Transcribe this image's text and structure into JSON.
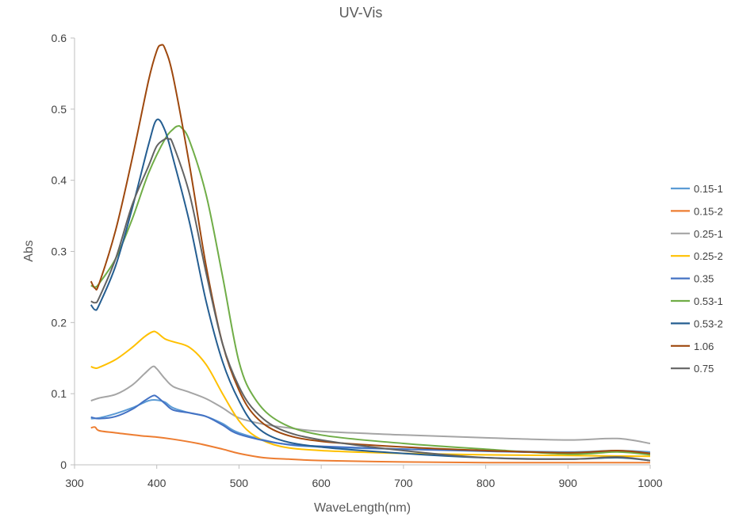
{
  "chart_data": {
    "type": "line",
    "title": "UV-Vis",
    "xlabel": "WaveLength(nm)",
    "ylabel": "Abs",
    "xlim": [
      300,
      1000
    ],
    "ylim": [
      0,
      0.6
    ],
    "xticks": [
      "300",
      "400",
      "500",
      "600",
      "700",
      "800",
      "900",
      "1000"
    ],
    "yticks": [
      "0",
      "0.1",
      "0.2",
      "0.3",
      "0.4",
      "0.5",
      "0.6"
    ],
    "grid": false,
    "legend_position": "right",
    "series": [
      {
        "name": "0.15-1",
        "color": "#5B9BD5",
        "x": [
          320,
          330,
          350,
          370,
          390,
          400,
          410,
          420,
          440,
          460,
          480,
          500,
          550,
          600,
          700,
          800,
          900,
          960,
          1000
        ],
        "y": [
          0.065,
          0.066,
          0.072,
          0.08,
          0.09,
          0.091,
          0.088,
          0.08,
          0.073,
          0.068,
          0.058,
          0.045,
          0.03,
          0.025,
          0.022,
          0.02,
          0.018,
          0.02,
          0.018
        ]
      },
      {
        "name": "0.15-2",
        "color": "#ED7D31",
        "x": [
          320,
          325,
          330,
          350,
          380,
          400,
          420,
          450,
          480,
          500,
          530,
          560,
          600,
          700,
          800,
          900,
          1000
        ],
        "y": [
          0.052,
          0.053,
          0.048,
          0.045,
          0.041,
          0.039,
          0.036,
          0.03,
          0.022,
          0.016,
          0.01,
          0.008,
          0.006,
          0.004,
          0.003,
          0.003,
          0.003
        ]
      },
      {
        "name": "0.25-1",
        "color": "#A5A5A5",
        "x": [
          320,
          330,
          350,
          370,
          385,
          395,
          400,
          410,
          420,
          440,
          460,
          480,
          500,
          530,
          560,
          600,
          700,
          800,
          900,
          960,
          1000
        ],
        "y": [
          0.09,
          0.094,
          0.099,
          0.112,
          0.128,
          0.138,
          0.135,
          0.121,
          0.11,
          0.102,
          0.093,
          0.08,
          0.066,
          0.057,
          0.052,
          0.047,
          0.042,
          0.038,
          0.035,
          0.037,
          0.03
        ]
      },
      {
        "name": "0.25-2",
        "color": "#FFC000",
        "x": [
          320,
          325,
          330,
          350,
          370,
          385,
          395,
          400,
          410,
          420,
          440,
          460,
          480,
          500,
          520,
          550,
          600,
          700,
          800,
          900,
          1000
        ],
        "y": [
          0.138,
          0.136,
          0.137,
          0.148,
          0.165,
          0.18,
          0.187,
          0.186,
          0.177,
          0.173,
          0.165,
          0.141,
          0.1,
          0.062,
          0.04,
          0.026,
          0.02,
          0.016,
          0.014,
          0.013,
          0.012
        ]
      },
      {
        "name": "0.35",
        "color": "#4472C4",
        "x": [
          320,
          330,
          350,
          370,
          385,
          395,
          400,
          410,
          420,
          440,
          460,
          480,
          500,
          550,
          600,
          700,
          800,
          900,
          960,
          1000
        ],
        "y": [
          0.067,
          0.065,
          0.068,
          0.078,
          0.09,
          0.097,
          0.096,
          0.086,
          0.077,
          0.073,
          0.068,
          0.056,
          0.043,
          0.03,
          0.026,
          0.022,
          0.019,
          0.017,
          0.019,
          0.016
        ]
      },
      {
        "name": "0.53-1",
        "color": "#70AD47",
        "x": [
          320,
          325,
          330,
          350,
          370,
          390,
          410,
          420,
          425,
          430,
          440,
          460,
          480,
          500,
          520,
          550,
          600,
          700,
          800,
          900,
          960,
          1000
        ],
        "y": [
          0.252,
          0.25,
          0.255,
          0.29,
          0.345,
          0.41,
          0.458,
          0.472,
          0.476,
          0.474,
          0.455,
          0.38,
          0.265,
          0.145,
          0.092,
          0.06,
          0.042,
          0.03,
          0.022,
          0.015,
          0.018,
          0.014
        ]
      },
      {
        "name": "0.53-2",
        "color": "#255E91",
        "x": [
          320,
          325,
          330,
          350,
          370,
          390,
          400,
          410,
          420,
          440,
          460,
          480,
          500,
          520,
          550,
          600,
          700,
          800,
          900,
          960,
          1000
        ],
        "y": [
          0.225,
          0.218,
          0.225,
          0.28,
          0.36,
          0.45,
          0.485,
          0.47,
          0.43,
          0.34,
          0.23,
          0.145,
          0.09,
          0.055,
          0.035,
          0.025,
          0.016,
          0.01,
          0.008,
          0.01,
          0.006
        ]
      },
      {
        "name": "1.06",
        "color": "#9E480E",
        "x": [
          320,
          325,
          330,
          350,
          370,
          390,
          400,
          405,
          410,
          420,
          440,
          460,
          480,
          500,
          520,
          550,
          600,
          700,
          800,
          900,
          960,
          1000
        ],
        "y": [
          0.258,
          0.248,
          0.255,
          0.33,
          0.43,
          0.54,
          0.582,
          0.59,
          0.585,
          0.545,
          0.42,
          0.28,
          0.17,
          0.105,
          0.068,
          0.045,
          0.033,
          0.025,
          0.02,
          0.017,
          0.02,
          0.016
        ]
      },
      {
        "name": "0.75",
        "color": "#636363",
        "x": [
          320,
          325,
          330,
          350,
          370,
          390,
          400,
          410,
          415,
          420,
          440,
          460,
          480,
          500,
          520,
          550,
          600,
          700,
          800,
          900,
          960,
          1000
        ],
        "y": [
          0.23,
          0.228,
          0.235,
          0.29,
          0.365,
          0.42,
          0.448,
          0.458,
          0.458,
          0.45,
          0.38,
          0.27,
          0.17,
          0.11,
          0.075,
          0.05,
          0.035,
          0.02,
          0.01,
          0.008,
          0.011,
          0.006
        ]
      }
    ]
  }
}
